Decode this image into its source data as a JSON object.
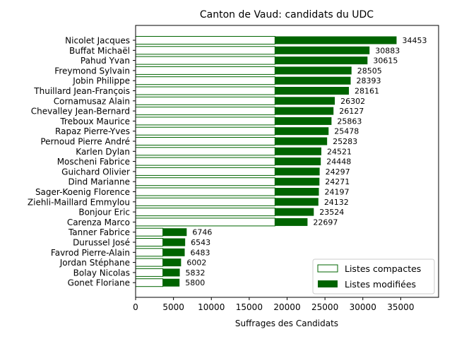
{
  "chart_data": {
    "type": "bar",
    "orientation": "horizontal",
    "stacked": true,
    "title": "Canton de Vaud: candidats du UDC",
    "xlabel": "Suffrages des Candidats",
    "ylabel": "",
    "xlim": [
      0,
      40000
    ],
    "xticks": [
      "0",
      "5000",
      "10000",
      "15000",
      "20000",
      "25000",
      "30000",
      "35000"
    ],
    "grid": false,
    "legend_position": "lower-right",
    "colors": {
      "compact_edge": "#006400",
      "compact_fill": "#ffffff",
      "modified": "#006400"
    },
    "categories": [
      "Nicolet Jacques",
      "Buffat Michaël",
      "Pahud Yvan",
      "Freymond Sylvain",
      "Jobin Philippe",
      "Thuillard Jean-François",
      "Cornamusaz Alain",
      "Chevalley Jean-Bernard",
      "Treboux Maurice",
      "Rapaz Pierre-Yves",
      "Pernoud Pierre André",
      "Karlen Dylan",
      "Moscheni Fabrice",
      "Guichard Olivier",
      "Dind Marianne",
      "Sager-Koenig Florence",
      "Ziehli-Maillard Emmylou",
      "Bonjour Eric",
      "Carenza Marco",
      "Tanner Fabrice",
      "Durussel José",
      "Favrod Pierre-Alain",
      "Jordan Stéphane",
      "Bolay Nicolas",
      "Gonet Floriane"
    ],
    "series": [
      {
        "name": "Listes compactes",
        "values": [
          18400,
          18400,
          18400,
          18400,
          18400,
          18400,
          18400,
          18400,
          18400,
          18400,
          18400,
          18400,
          18400,
          18400,
          18400,
          18400,
          18400,
          18400,
          18400,
          3600,
          3600,
          3600,
          3600,
          3600,
          3600
        ]
      },
      {
        "name": "Listes modifiées",
        "values": [
          16053,
          12483,
          12215,
          10105,
          9993,
          9761,
          7902,
          7727,
          7463,
          7078,
          6883,
          6121,
          6048,
          5897,
          5871,
          5797,
          5732,
          5124,
          4297,
          3146,
          2943,
          2883,
          2402,
          2232,
          2200
        ]
      }
    ],
    "totals": [
      34453,
      30883,
      30615,
      28505,
      28393,
      28161,
      26302,
      26127,
      25863,
      25478,
      25283,
      24521,
      24448,
      24297,
      24271,
      24197,
      24132,
      23524,
      22697,
      6746,
      6543,
      6483,
      6002,
      5832,
      5800
    ]
  }
}
